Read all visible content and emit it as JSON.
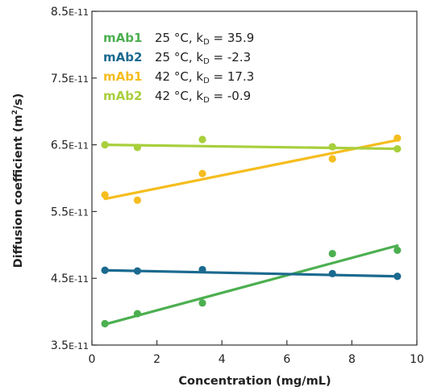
{
  "chart_data": {
    "type": "scatter",
    "title": "",
    "xlabel": "Concentration (mg/mL)",
    "ylabel_main": "Diffusion coefficient (m",
    "ylabel_sup": "2",
    "ylabel_end": "/s)",
    "xlim": [
      0,
      10
    ],
    "ylim": [
      3.5e-11,
      8.5e-11
    ],
    "x_ticks": [
      0,
      2,
      4,
      6,
      8,
      10
    ],
    "x_tick_labels": [
      "0",
      "2",
      "4",
      "6",
      "8",
      "10"
    ],
    "y_ticks": [
      3.5e-11,
      4.5e-11,
      5.5e-11,
      6.5e-11,
      7.5e-11,
      8.5e-11
    ],
    "y_tick_mantissa": [
      "3.5",
      "4.5",
      "5.5",
      "6.5",
      "7.5",
      "8.5"
    ],
    "y_tick_exponent": "E-11",
    "grid": false,
    "legend_position": "top-left",
    "series": [
      {
        "name": "mAb1",
        "condition": "25 °C, k",
        "kd_sub": "D",
        "kd_value": " = 35.9",
        "color": "#4caf50",
        "x": [
          0.4,
          1.4,
          3.4,
          7.4,
          9.4
        ],
        "y": [
          3.82e-11,
          3.97e-11,
          4.13e-11,
          4.87e-11,
          4.92e-11
        ],
        "fit": [
          [
            0.4,
            3.81e-11
          ],
          [
            9.4,
            4.99e-11
          ]
        ]
      },
      {
        "name": "mAb2",
        "condition": "25 °C, k",
        "kd_sub": "D",
        "kd_value": " = -2.3",
        "color": "#1b6a8f",
        "x": [
          0.4,
          1.4,
          3.4,
          7.4,
          9.4
        ],
        "y": [
          4.62e-11,
          4.61e-11,
          4.63e-11,
          4.57e-11,
          4.53e-11
        ],
        "fit": [
          [
            0.4,
            4.62e-11
          ],
          [
            9.4,
            4.53e-11
          ]
        ]
      },
      {
        "name": "mAb1",
        "condition": "42 °C, k",
        "kd_sub": "D",
        "kd_value": " = 17.3",
        "color": "#f5bd1f",
        "x": [
          0.4,
          1.4,
          3.4,
          7.4,
          9.4
        ],
        "y": [
          5.75e-11,
          5.67e-11,
          6.07e-11,
          6.29e-11,
          6.6e-11
        ],
        "fit": [
          [
            0.4,
            5.69e-11
          ],
          [
            9.4,
            6.57e-11
          ]
        ]
      },
      {
        "name": "mAb2",
        "condition": "42 °C, k",
        "kd_sub": "D",
        "kd_value": " = -0.9",
        "color": "#a8cf3c",
        "x": [
          0.4,
          1.4,
          3.4,
          7.4,
          9.4
        ],
        "y": [
          6.5e-11,
          6.46e-11,
          6.58e-11,
          6.47e-11,
          6.44e-11
        ],
        "fit": [
          [
            0.4,
            6.5e-11
          ],
          [
            9.4,
            6.44e-11
          ]
        ]
      }
    ]
  }
}
